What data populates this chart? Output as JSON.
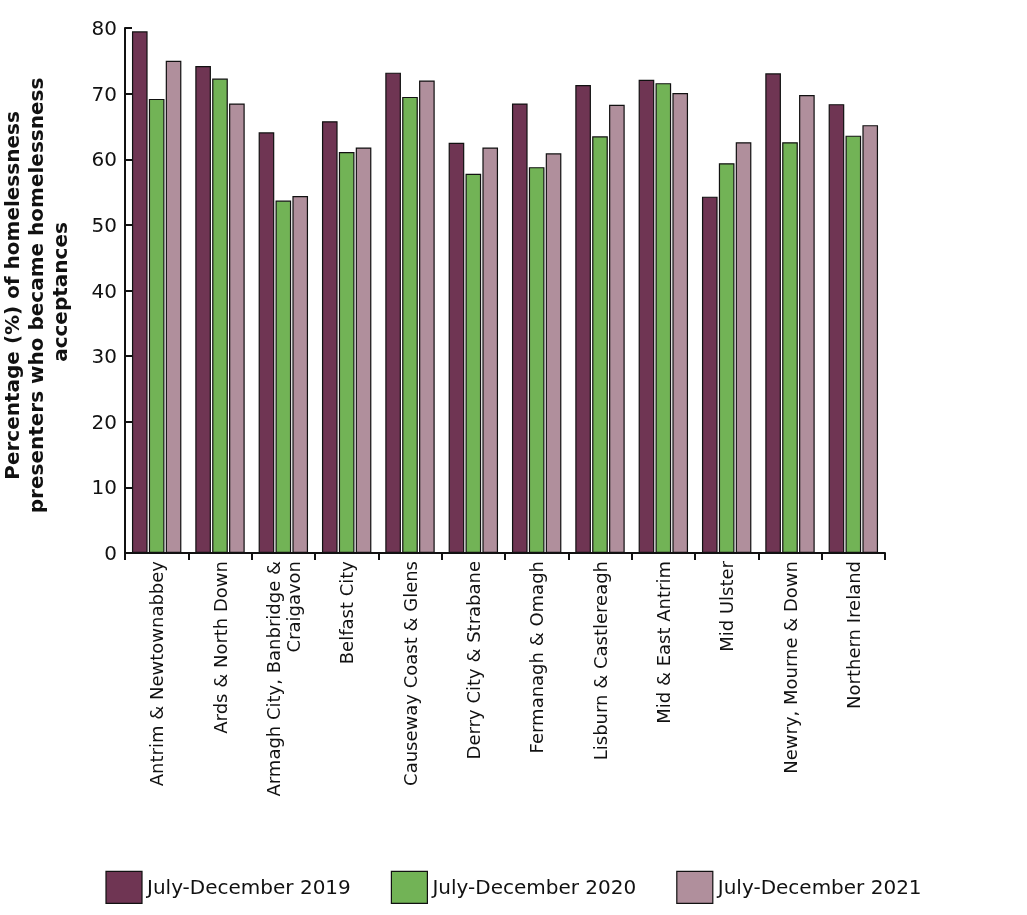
{
  "chart_data": {
    "type": "bar",
    "ylabel": "Percentage (%) of homelessness presenters who became homelessness acceptances",
    "categories": [
      "Antrim & Newtownabbey",
      "Ards & North Down",
      "Armagh City, Banbridge & Craigavon",
      "Belfast City",
      "Causeway Coast & Glens",
      "Derry City & Strabane",
      "Fermanagh & Omagh",
      "Lisburn & Castlereagh",
      "Mid & East Antrim",
      "Mid Ulster",
      "Newry, Mourne & Down",
      "Northern Ireland"
    ],
    "series": [
      {
        "name": "July-December 2019",
        "color": "#6f3553",
        "values": [
          79.5,
          74.2,
          64.1,
          65.8,
          73.2,
          62.5,
          68.5,
          71.3,
          72.1,
          54.3,
          73.1,
          68.4
        ]
      },
      {
        "name": "July-December 2020",
        "color": "#72b356",
        "values": [
          69.2,
          72.3,
          53.7,
          61.1,
          69.5,
          57.8,
          58.8,
          63.5,
          71.6,
          59.4,
          62.6,
          63.6
        ]
      },
      {
        "name": "July-December 2021",
        "color": "#b08f9c",
        "values": [
          75.0,
          68.5,
          54.4,
          61.8,
          72.0,
          61.8,
          60.9,
          68.3,
          70.1,
          62.6,
          69.8,
          65.2
        ]
      }
    ],
    "ylim": [
      0,
      80
    ],
    "yticks": [
      0,
      10,
      20,
      30,
      40,
      50,
      60,
      70,
      80
    ],
    "grid": false,
    "legend": "bottom"
  }
}
